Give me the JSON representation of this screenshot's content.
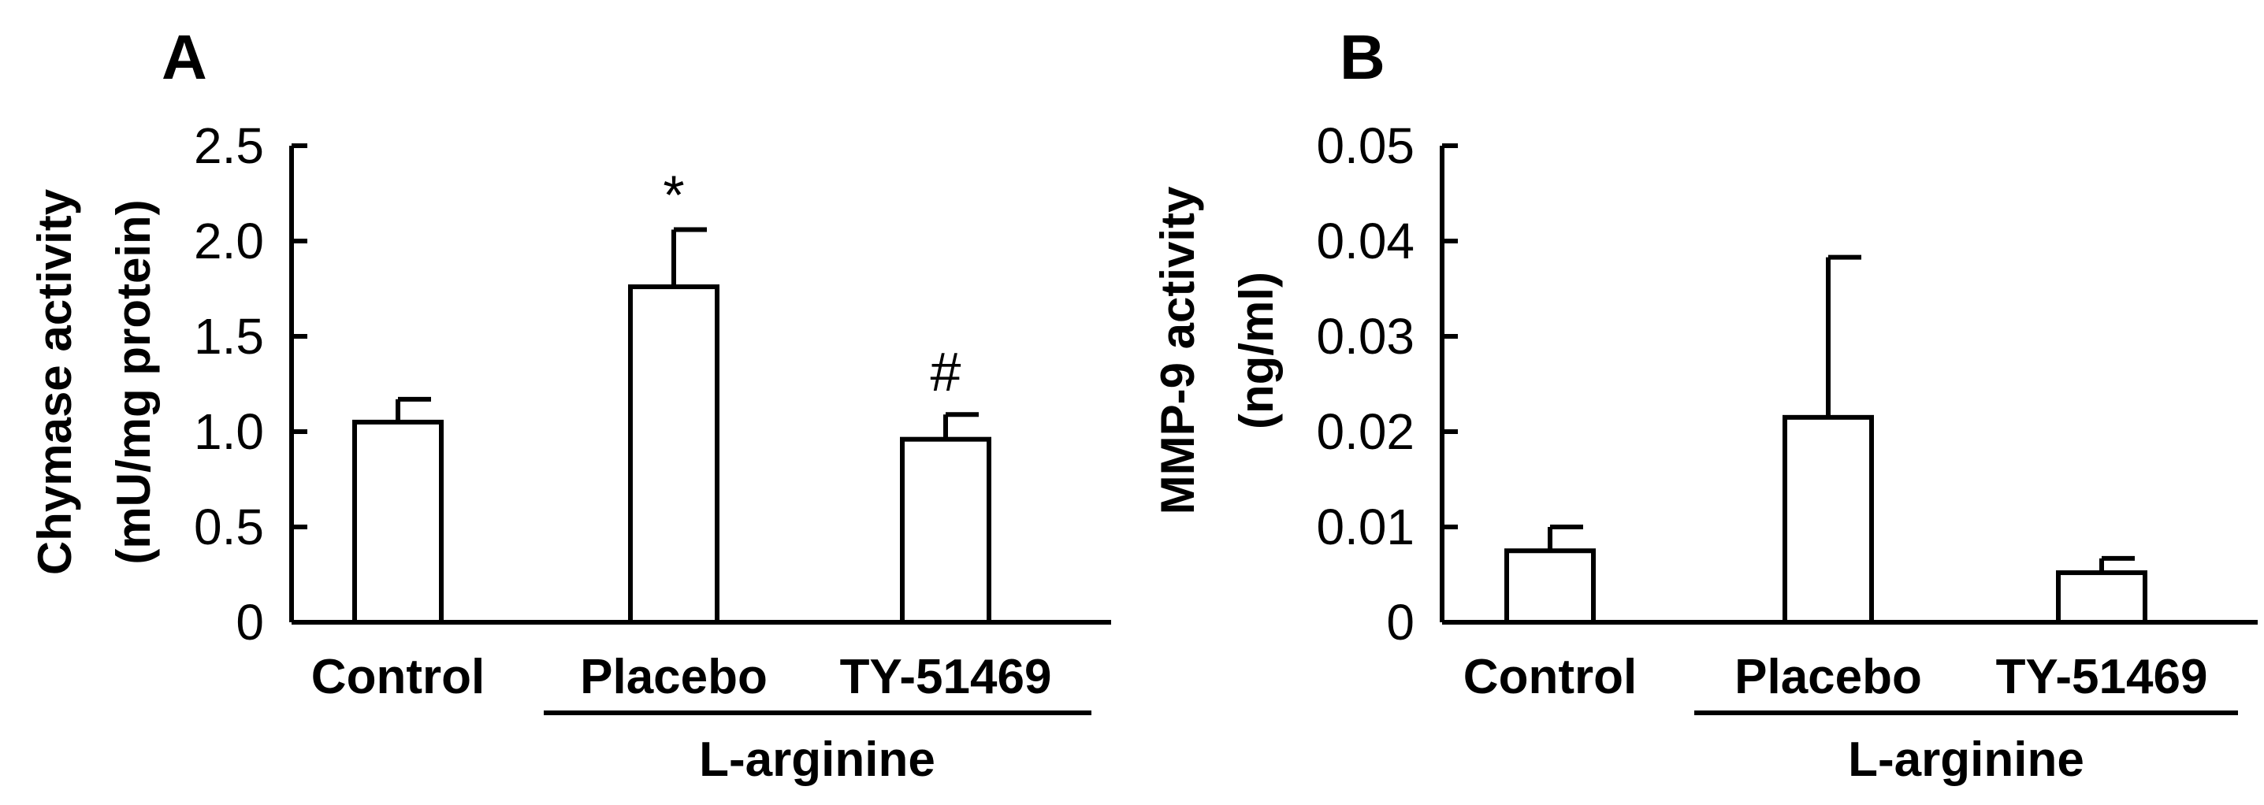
{
  "chart_data": [
    {
      "type": "bar",
      "panel": "A",
      "ylabel_line1": "Chymase activity",
      "ylabel_line2": "(mU/mg protein)",
      "ylim": [
        0,
        2.5
      ],
      "yticks": [
        "0",
        "0.5",
        "1.0",
        "1.5",
        "2.0",
        "2.5"
      ],
      "categories": [
        "Control",
        "Placebo",
        "TY-51469"
      ],
      "values": [
        1.05,
        1.76,
        0.96
      ],
      "errors": [
        0.12,
        0.3,
        0.13
      ],
      "annotations": [
        "",
        "*",
        "#"
      ],
      "group_label": "L-arginine"
    },
    {
      "type": "bar",
      "panel": "B",
      "ylabel_line1": "MMP-9 activity",
      "ylabel_line2": "(ng/ml)",
      "ylim": [
        0,
        0.05
      ],
      "yticks": [
        "0",
        "0.01",
        "0.02",
        "0.03",
        "0.04",
        "0.05"
      ],
      "categories": [
        "Control",
        "Placebo",
        "TY-51469"
      ],
      "values": [
        0.0075,
        0.0215,
        0.0052
      ],
      "errors": [
        0.0025,
        0.0168,
        0.0015
      ],
      "annotations": [
        "",
        "",
        ""
      ],
      "group_label": "L-arginine"
    }
  ]
}
